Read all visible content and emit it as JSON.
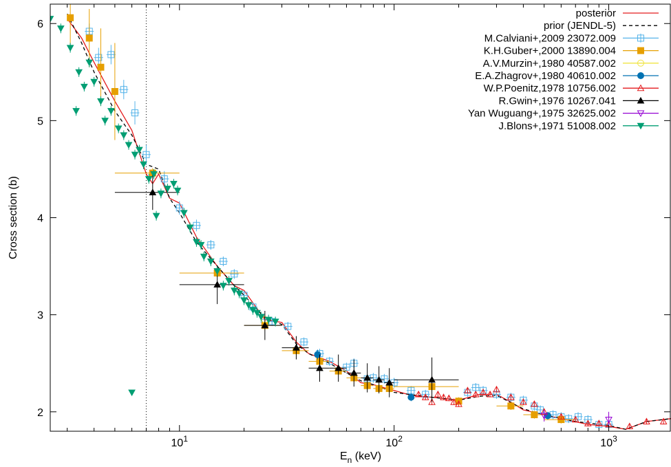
{
  "chart_data": {
    "type": "scatter",
    "xlabel": "E_n (keV)",
    "ylabel": "Cross section (b)",
    "xscale": "log",
    "xlim": [
      2.5,
      1950
    ],
    "ylim": [
      1.8,
      6.2
    ],
    "x_tick_labels": [
      {
        "value": 10,
        "base": "10",
        "exp": "1"
      },
      {
        "value": 100,
        "base": "10",
        "exp": "2"
      },
      {
        "value": 1000,
        "base": "10",
        "exp": "3"
      }
    ],
    "y_ticks": [
      2,
      3,
      4,
      5,
      6
    ],
    "vertical_marker": {
      "x": 7.0,
      "style": "dotted"
    },
    "legend_position": "top-right",
    "grid": false,
    "series": [
      {
        "name": "posterior",
        "style": "line",
        "color": "#e41a1c",
        "dash": "solid",
        "points": [
          [
            3,
            6.05
          ],
          [
            3.5,
            5.85
          ],
          [
            4,
            5.6
          ],
          [
            5,
            5.2
          ],
          [
            6,
            4.9
          ],
          [
            7,
            4.45
          ],
          [
            7.5,
            4.35
          ],
          [
            8,
            4.45
          ],
          [
            9,
            4.2
          ],
          [
            10,
            4.15
          ],
          [
            12,
            3.8
          ],
          [
            15,
            3.5
          ],
          [
            18,
            3.3
          ],
          [
            20,
            3.25
          ],
          [
            25,
            2.95
          ],
          [
            30,
            2.92
          ],
          [
            35,
            2.72
          ],
          [
            40,
            2.6
          ],
          [
            50,
            2.52
          ],
          [
            60,
            2.42
          ],
          [
            70,
            2.3
          ],
          [
            80,
            2.28
          ],
          [
            100,
            2.22
          ],
          [
            120,
            2.17
          ],
          [
            150,
            2.15
          ],
          [
            200,
            2.12
          ],
          [
            250,
            2.18
          ],
          [
            300,
            2.18
          ],
          [
            350,
            2.1
          ],
          [
            400,
            2.02
          ],
          [
            500,
            1.97
          ],
          [
            600,
            1.93
          ],
          [
            800,
            1.87
          ],
          [
            1000,
            1.85
          ],
          [
            1200,
            1.82
          ],
          [
            1500,
            1.9
          ],
          [
            1950,
            1.93
          ]
        ]
      },
      {
        "name": "prior (JENDL-5)",
        "style": "line",
        "color": "#000000",
        "dash": "dashed",
        "points": [
          [
            3,
            6.1
          ],
          [
            3.5,
            5.8
          ],
          [
            4,
            5.5
          ],
          [
            5,
            5.1
          ],
          [
            6,
            4.85
          ],
          [
            7,
            4.55
          ],
          [
            8,
            4.5
          ],
          [
            9,
            4.2
          ],
          [
            10,
            4.05
          ],
          [
            12,
            3.75
          ],
          [
            15,
            3.5
          ],
          [
            18,
            3.3
          ],
          [
            20,
            3.2
          ],
          [
            25,
            2.97
          ],
          [
            30,
            2.9
          ],
          [
            35,
            2.7
          ],
          [
            40,
            2.6
          ],
          [
            50,
            2.5
          ],
          [
            60,
            2.4
          ],
          [
            70,
            2.32
          ],
          [
            80,
            2.28
          ],
          [
            100,
            2.2
          ],
          [
            150,
            2.15
          ],
          [
            200,
            2.12
          ],
          [
            250,
            2.16
          ],
          [
            300,
            2.17
          ],
          [
            400,
            2.03
          ],
          [
            500,
            1.97
          ],
          [
            700,
            1.9
          ],
          [
            1000,
            1.86
          ],
          [
            1200,
            1.82
          ],
          [
            1500,
            1.9
          ],
          [
            1950,
            1.93
          ]
        ]
      },
      {
        "name": "M.Calviani+,2009 23072.009",
        "marker": "square-cross-open",
        "color": "#56b4e9",
        "points": [
          [
            3.8,
            5.92,
            0.08
          ],
          [
            4.2,
            5.65,
            0.1
          ],
          [
            4.8,
            5.68,
            0.1
          ],
          [
            5.5,
            5.32,
            0.1
          ],
          [
            6.2,
            5.08,
            0.12
          ],
          [
            7,
            4.65,
            0.1
          ],
          [
            8.5,
            4.4,
            0.08
          ],
          [
            10,
            4.1,
            0.07
          ],
          [
            12,
            3.92,
            0.06
          ],
          [
            14,
            3.72,
            0.05
          ],
          [
            16,
            3.55,
            0.05
          ],
          [
            18,
            3.42,
            0.05
          ],
          [
            20,
            3.2,
            0.04
          ],
          [
            22,
            3.08,
            0.04
          ],
          [
            25,
            2.92,
            0.04
          ],
          [
            27,
            2.93,
            0.04
          ],
          [
            32,
            2.88,
            0.04
          ],
          [
            38,
            2.72,
            0.04
          ],
          [
            45,
            2.6,
            0.05
          ],
          [
            50,
            2.52,
            0.04
          ],
          [
            60,
            2.46,
            0.04
          ],
          [
            65,
            2.5,
            0.05
          ],
          [
            75,
            2.34,
            0.04
          ],
          [
            80,
            2.35,
            0.05
          ],
          [
            90,
            2.34,
            0.05
          ],
          [
            100,
            2.3,
            0.05
          ],
          [
            120,
            2.22,
            0.04
          ],
          [
            140,
            2.18,
            0.04
          ],
          [
            220,
            2.2,
            0.04
          ],
          [
            240,
            2.25,
            0.04
          ],
          [
            260,
            2.22,
            0.04
          ],
          [
            300,
            2.18,
            0.04
          ],
          [
            350,
            2.15,
            0.04
          ],
          [
            400,
            2.12,
            0.04
          ],
          [
            450,
            2.06,
            0.04
          ],
          [
            480,
            2.02,
            0.04
          ],
          [
            550,
            1.97,
            0.04
          ],
          [
            600,
            1.95,
            0.04
          ],
          [
            650,
            1.93,
            0.04
          ],
          [
            720,
            1.95,
            0.04
          ],
          [
            800,
            1.92,
            0.04
          ],
          [
            900,
            1.87,
            0.04
          ],
          [
            1000,
            1.87,
            0.04
          ]
        ]
      },
      {
        "name": "K.H.Guber+,2000 13890.004",
        "marker": "square-filled",
        "color": "#e69f00",
        "points": [
          [
            3.1,
            6.06,
            0.3,
            0,
            0
          ],
          [
            3.8,
            5.85,
            0.3,
            0,
            0
          ],
          [
            4.3,
            5.55,
            0.4,
            0,
            0
          ],
          [
            5,
            5.3,
            0.5,
            0,
            0
          ],
          [
            7.5,
            4.46,
            0.05,
            5,
            10
          ],
          [
            15,
            3.43,
            0.04,
            10,
            20
          ],
          [
            25,
            2.89,
            0.05,
            20,
            30
          ],
          [
            35,
            2.63,
            0.04,
            30,
            40
          ],
          [
            45,
            2.52,
            0.04,
            40,
            50
          ],
          [
            55,
            2.42,
            0.04,
            50,
            60
          ],
          [
            65,
            2.35,
            0.04,
            60,
            70
          ],
          [
            75,
            2.27,
            0.04,
            70,
            80
          ],
          [
            85,
            2.24,
            0.04,
            80,
            90
          ],
          [
            95,
            2.24,
            0.04,
            90,
            100
          ],
          [
            150,
            2.26,
            0.04,
            100,
            200
          ],
          [
            200,
            2.11,
            0.04,
            0,
            0
          ],
          [
            350,
            2.06,
            0.04,
            300,
            400
          ],
          [
            450,
            1.97,
            0.04,
            400,
            500
          ],
          [
            600,
            1.92,
            0.04,
            500,
            700
          ]
        ]
      },
      {
        "name": "A.V.Murzin+,1980 40587.002",
        "marker": "circle-open",
        "color": "#f0e442",
        "points": [
          [
            25,
            2.95,
            0.05
          ]
        ]
      },
      {
        "name": "E.A.Zhagrov+,1980 40610.002",
        "marker": "circle-filled",
        "color": "#0072b2",
        "points": [
          [
            44,
            2.59,
            0.05
          ],
          [
            120,
            2.15,
            0.04
          ],
          [
            520,
            1.96,
            0.04
          ]
        ]
      },
      {
        "name": "W.P.Poenitz,1978 10756.002",
        "marker": "triangle-up-open",
        "color": "#e41a1c",
        "points": [
          [
            130,
            2.18,
            0.03
          ],
          [
            140,
            2.15,
            0.03
          ],
          [
            150,
            2.1,
            0.03
          ],
          [
            160,
            2.18,
            0.03
          ],
          [
            170,
            2.15,
            0.03
          ],
          [
            180,
            2.14,
            0.03
          ],
          [
            190,
            2.1,
            0.03
          ],
          [
            200,
            2.08,
            0.03
          ],
          [
            220,
            2.22,
            0.03
          ],
          [
            240,
            2.18,
            0.03
          ],
          [
            260,
            2.2,
            0.03
          ],
          [
            280,
            2.18,
            0.03
          ],
          [
            300,
            2.23,
            0.03
          ],
          [
            350,
            2.15,
            0.03
          ],
          [
            400,
            2.1,
            0.03
          ],
          [
            450,
            2.08,
            0.03
          ],
          [
            500,
            2.0,
            0.03
          ],
          [
            600,
            1.95,
            0.03
          ],
          [
            700,
            1.92,
            0.03
          ],
          [
            800,
            1.88,
            0.03
          ],
          [
            900,
            1.88,
            0.03
          ],
          [
            1000,
            1.87,
            0.03
          ],
          [
            1250,
            1.85,
            0.03
          ],
          [
            1500,
            1.9,
            0.03
          ],
          [
            1800,
            1.9,
            0.03
          ]
        ]
      },
      {
        "name": "R.Gwin+,1976 10267.041",
        "marker": "triangle-up-filled",
        "color": "#000000",
        "points": [
          [
            7.5,
            4.26,
            0.18,
            5,
            10
          ],
          [
            15,
            3.31,
            0.2,
            10,
            20
          ],
          [
            25,
            2.89,
            0.15,
            20,
            30
          ],
          [
            35,
            2.66,
            0.12,
            30,
            40
          ],
          [
            45,
            2.45,
            0.14,
            40,
            50
          ],
          [
            55,
            2.45,
            0.14,
            50,
            60
          ],
          [
            65,
            2.4,
            0.14,
            60,
            70
          ],
          [
            75,
            2.35,
            0.15,
            70,
            80
          ],
          [
            85,
            2.33,
            0.14,
            80,
            90
          ],
          [
            95,
            2.3,
            0.15,
            90,
            100
          ],
          [
            150,
            2.33,
            0.23,
            100,
            200
          ]
        ]
      },
      {
        "name": "Yan Wuguang+,1975 32625.002",
        "marker": "triangle-down-open",
        "color": "#9400d3",
        "points": [
          [
            500,
            1.96,
            0.06
          ],
          [
            1000,
            1.92,
            0.08
          ]
        ]
      },
      {
        "name": "J.Blons+,1971 51008.002",
        "marker": "triangle-down-filled",
        "color": "#009e73",
        "points": [
          [
            2.5,
            6.05,
            0.05
          ],
          [
            2.8,
            5.95,
            0.05
          ],
          [
            3.1,
            5.75,
            0.05
          ],
          [
            3.3,
            5.1,
            0.05
          ],
          [
            3.4,
            5.5,
            0.05
          ],
          [
            3.6,
            5.35,
            0.05
          ],
          [
            3.8,
            5.6,
            0.05
          ],
          [
            4.0,
            5.4,
            0.05
          ],
          [
            4.3,
            5.2,
            0.05
          ],
          [
            4.5,
            5.0,
            0.05
          ],
          [
            4.8,
            5.1,
            0.05
          ],
          [
            5.2,
            4.92,
            0.05
          ],
          [
            5.5,
            4.85,
            0.05
          ],
          [
            5.8,
            4.75,
            0.05
          ],
          [
            6.0,
            2.2,
            0.02
          ],
          [
            6.2,
            4.65,
            0.05
          ],
          [
            6.5,
            4.7,
            0.05
          ],
          [
            6.8,
            4.55,
            0.05
          ],
          [
            7.2,
            4.4,
            0.05
          ],
          [
            7.6,
            4.45,
            0.05
          ],
          [
            7.8,
            4.02,
            0.05
          ],
          [
            8.2,
            4.25,
            0.05
          ],
          [
            8.8,
            4.3,
            0.05
          ],
          [
            9.4,
            4.35,
            0.05
          ],
          [
            9.8,
            4.28,
            0.05
          ],
          [
            10.5,
            4.05,
            0.05
          ],
          [
            11.2,
            3.9,
            0.05
          ],
          [
            12,
            3.75,
            0.05
          ],
          [
            12.6,
            3.72,
            0.05
          ],
          [
            13,
            3.6,
            0.05
          ],
          [
            14,
            3.55,
            0.05
          ],
          [
            15,
            3.45,
            0.05
          ],
          [
            16,
            3.3,
            0.05
          ],
          [
            17,
            3.35,
            0.05
          ],
          [
            18,
            3.25,
            0.05
          ],
          [
            19,
            3.22,
            0.05
          ],
          [
            20,
            3.15,
            0.05
          ],
          [
            21,
            3.1,
            0.05
          ],
          [
            22,
            3.05,
            0.05
          ],
          [
            23,
            3.02,
            0.05
          ],
          [
            24,
            2.98,
            0.05
          ],
          [
            26,
            2.95,
            0.05
          ],
          [
            28,
            2.93,
            0.05
          ]
        ]
      }
    ]
  }
}
